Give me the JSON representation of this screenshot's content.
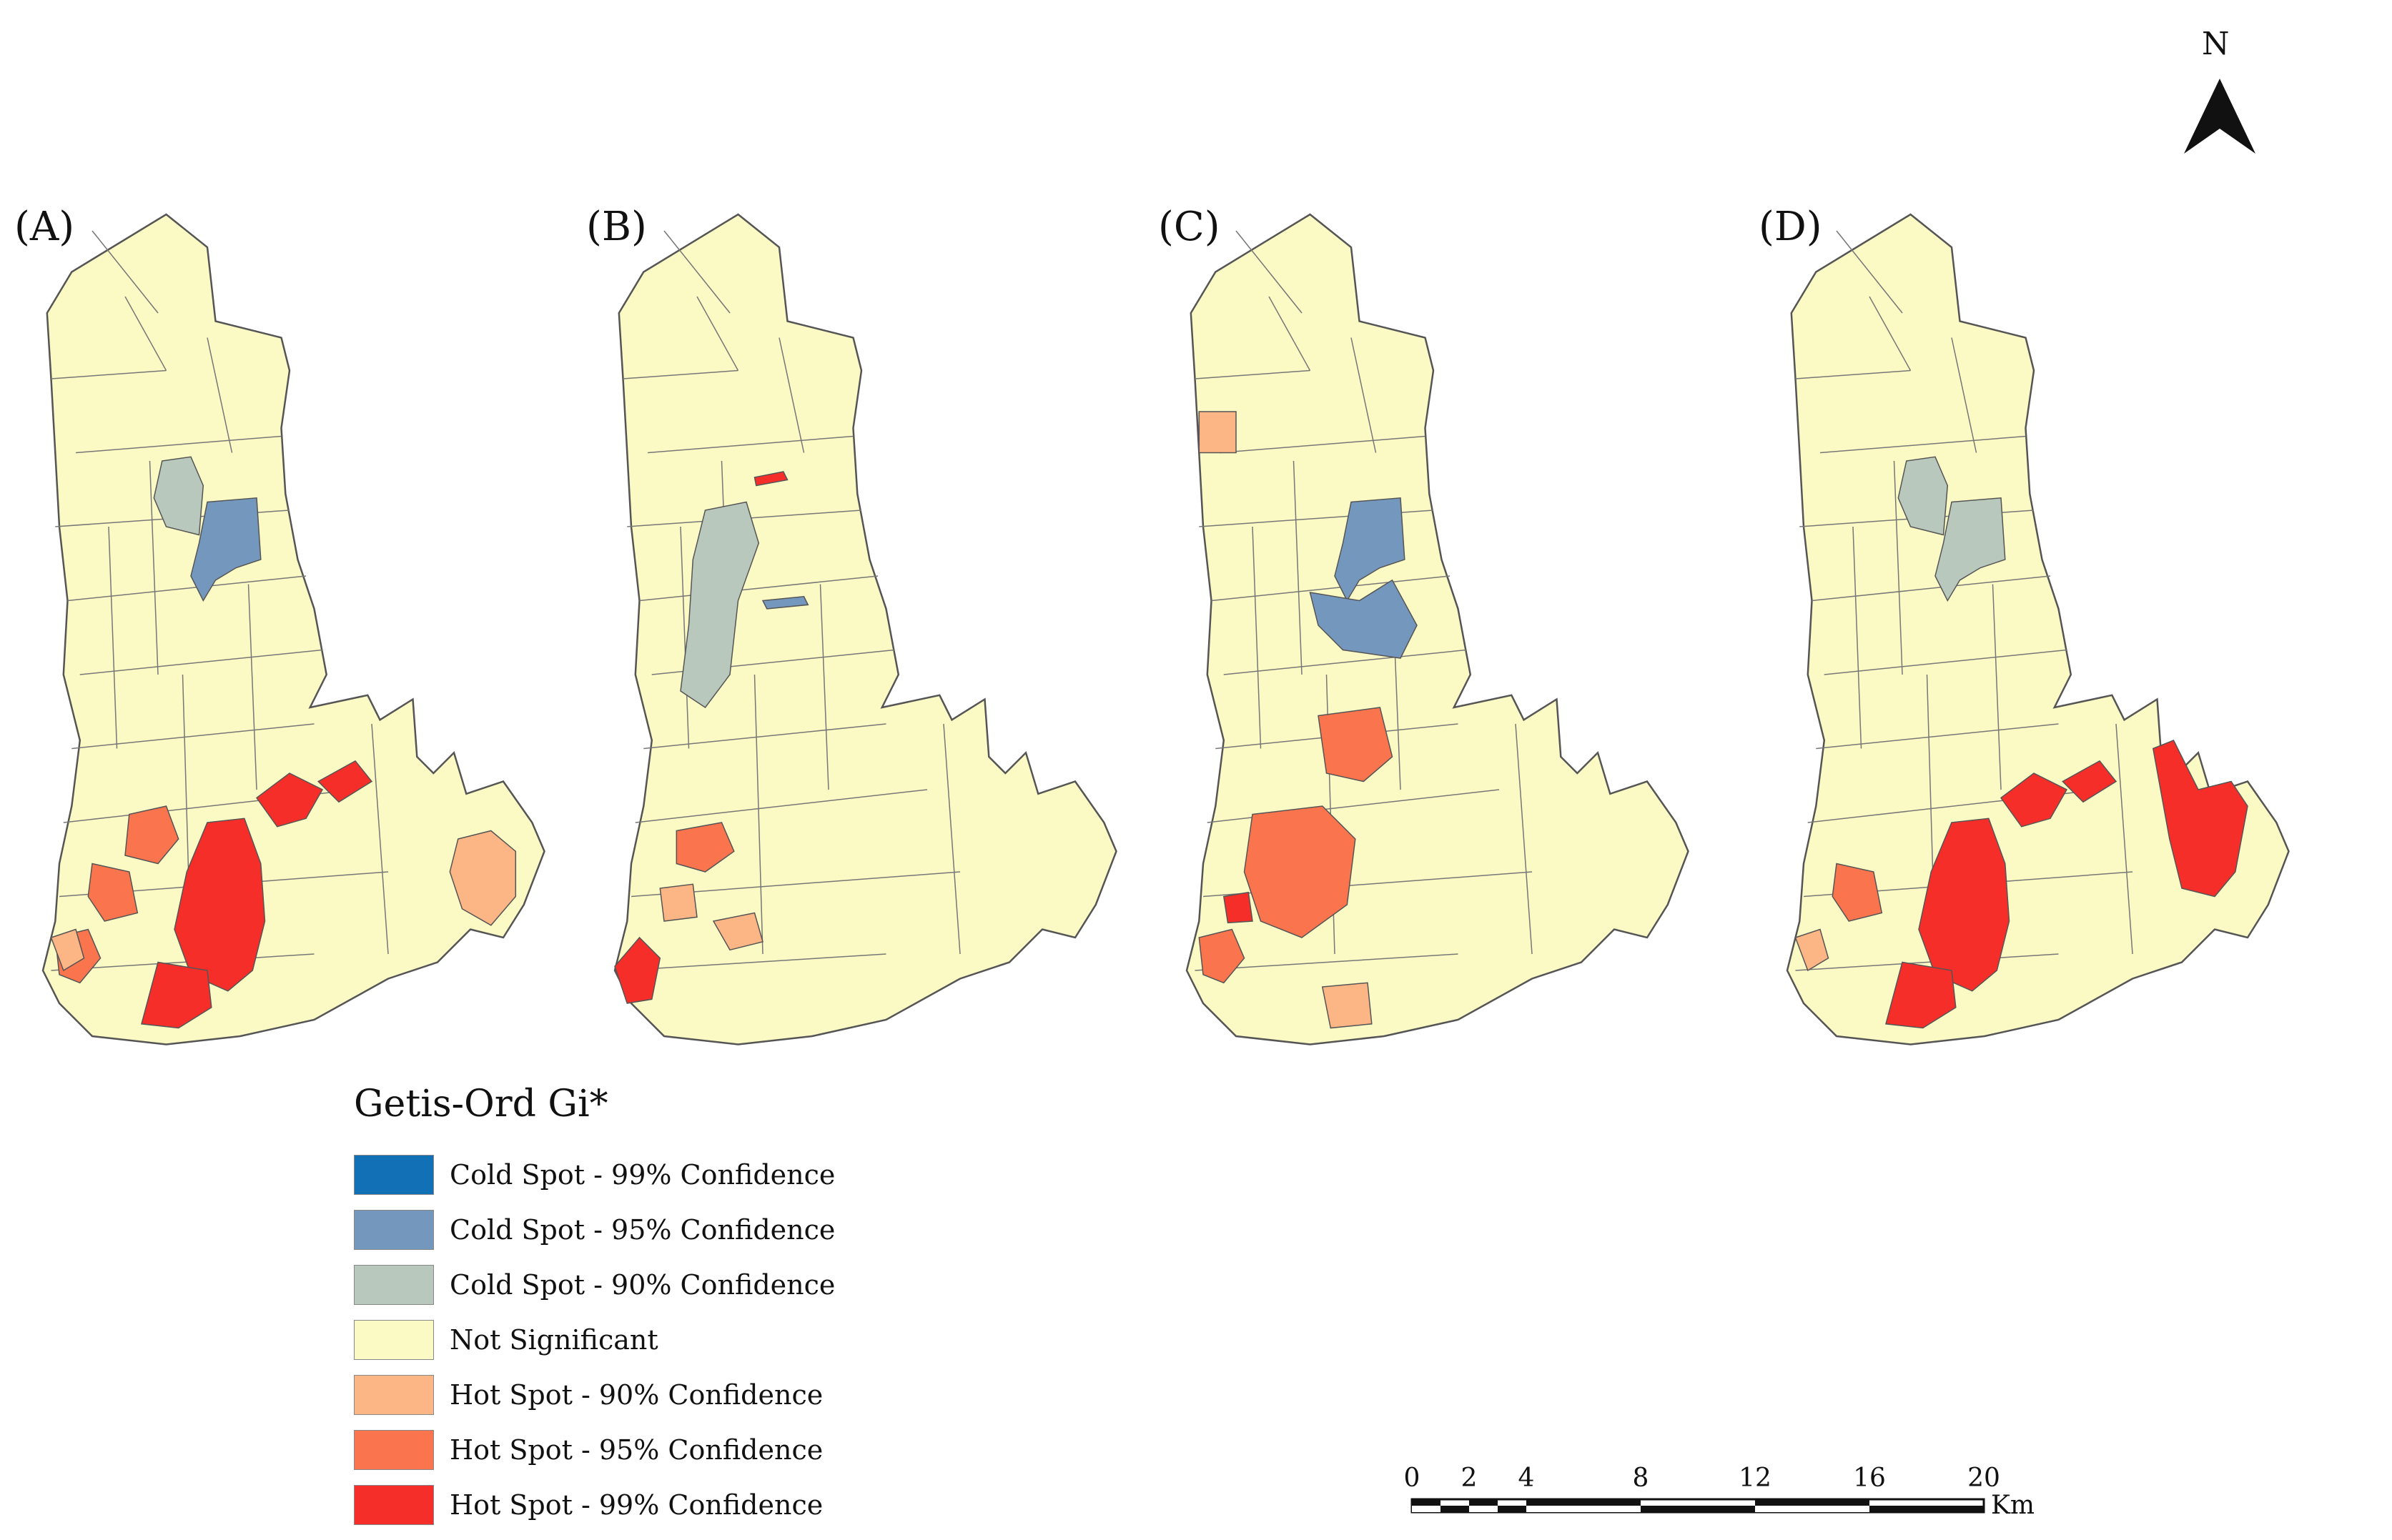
{
  "panels": [
    {
      "label": "(A)",
      "regions": {
        "cold95": [
          "c_ne"
        ],
        "cold90": [
          "c_nw"
        ],
        "hot99": [
          "h_arm1",
          "h_arm2",
          "h_core",
          "h_se"
        ],
        "hot95": [
          "h_wmid",
          "h_s2",
          "h_sw1"
        ],
        "hot90": [
          "h_far_e",
          "h_sw0"
        ]
      }
    },
    {
      "label": "(B)",
      "regions": {
        "cold90": [
          "c_westcol"
        ],
        "hot99": [
          "h_sliver",
          "h_sw_tip"
        ],
        "hot95": [
          "h_mid_patch"
        ],
        "hot90": [
          "h_patch2",
          "h_patch3"
        ],
        "cold95": [
          "c_sliver"
        ]
      }
    },
    {
      "label": "(C)",
      "regions": {
        "cold95": [
          "c_ne",
          "c_loop"
        ],
        "hot90": [
          "h_nw_sq",
          "h_s3"
        ],
        "hot95": [
          "h_center",
          "h_ring",
          "h_sw1"
        ],
        "hot99": [
          "h_small"
        ]
      }
    },
    {
      "label": "(D)",
      "regions": {
        "cold90": [
          "c_nw",
          "c_ne"
        ],
        "hot99": [
          "h_arm1",
          "h_arm2",
          "h_core",
          "h_se",
          "h_far_e2"
        ],
        "hot95": [
          "h_s2"
        ],
        "hot90": [
          "h_sw0"
        ]
      }
    }
  ],
  "legend": {
    "title": "Getis-Ord Gi*",
    "items": [
      {
        "key": "cold99",
        "label": "Cold Spot - 99% Confidence",
        "color": "#1170b6"
      },
      {
        "key": "cold95",
        "label": "Cold Spot - 95% Confidence",
        "color": "#7497be"
      },
      {
        "key": "cold90",
        "label": "Cold Spot - 90% Confidence",
        "color": "#b8c8bd"
      },
      {
        "key": "ns",
        "label": "Not Significant",
        "color": "#fbf9c4"
      },
      {
        "key": "hot90",
        "label": "Hot Spot - 90% Confidence",
        "color": "#fcb584"
      },
      {
        "key": "hot95",
        "label": "Hot Spot - 95% Confidence",
        "color": "#fa744e"
      },
      {
        "key": "hot99",
        "label": "Hot Spot - 99% Confidence",
        "color": "#f62e2a"
      }
    ]
  },
  "north_arrow": {
    "label": "N"
  },
  "scale_bar": {
    "ticks": [
      "0",
      "2",
      "4",
      "8",
      "12",
      "16",
      "20"
    ],
    "tick_values": [
      0,
      2,
      4,
      8,
      12,
      16,
      20
    ],
    "unit": "Km"
  }
}
